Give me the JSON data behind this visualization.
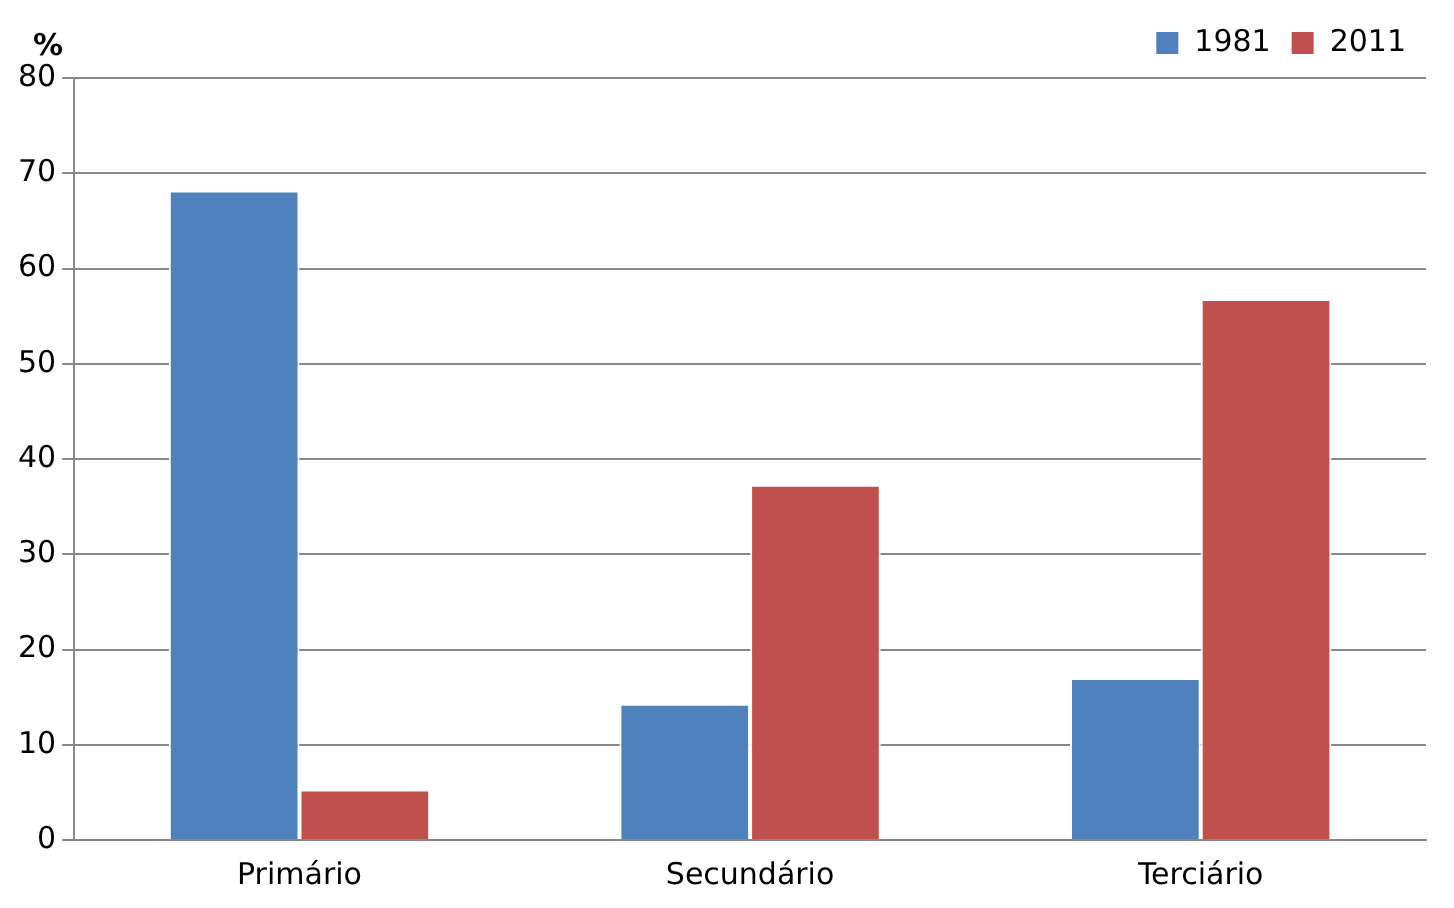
{
  "chart_data": {
    "type": "bar",
    "ylabel": "%",
    "categories": [
      "Primário",
      "Secundário",
      "Terciário"
    ],
    "series": [
      {
        "name": "1981",
        "color": "#4f81bd",
        "values": [
          68.2,
          14.3,
          17
        ]
      },
      {
        "name": "2011",
        "color": "#c0504d",
        "values": [
          5.3,
          37.3,
          56.8
        ]
      }
    ],
    "ylim": [
      0,
      80
    ],
    "yticks": [
      0,
      10,
      20,
      30,
      40,
      50,
      60,
      70,
      80
    ],
    "grid": "y",
    "legend": "top right"
  }
}
